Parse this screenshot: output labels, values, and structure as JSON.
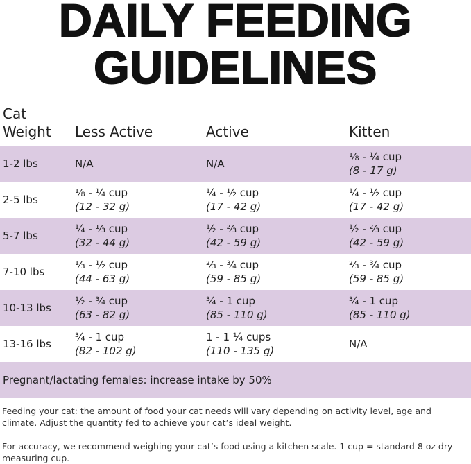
{
  "title": [
    "DAILY FEEDING",
    "GUIDELINES"
  ],
  "table": {
    "header": [
      [
        "Cat",
        "Weight"
      ],
      "Less Active",
      "Active",
      "Kitten"
    ],
    "rows": [
      [
        "1-2 lbs",
        "N/A",
        "N/A",
        {
          "cups": "⅛ - ¼ cup",
          "grams": "(8 - 17 g)"
        }
      ],
      [
        "2-5 lbs",
        {
          "cups": "⅛ - ¼ cup",
          "grams": "(12 - 32 g)"
        },
        {
          "cups": "¼ - ½ cup",
          "grams": "(17 - 42 g)"
        },
        {
          "cups": "¼ - ½ cup",
          "grams": "(17 - 42 g)"
        }
      ],
      [
        "5-7 lbs",
        {
          "cups": "¼ - ⅓ cup",
          "grams": "(32 - 44 g)"
        },
        {
          "cups": "½ - ⅔ cup",
          "grams": "(42 - 59 g)"
        },
        {
          "cups": "½ - ⅔ cup",
          "grams": "(42 - 59 g)"
        }
      ],
      [
        "7-10 lbs",
        {
          "cups": "⅓ - ½ cup",
          "grams": "(44 - 63 g)"
        },
        {
          "cups": "⅔ - ¾ cup",
          "grams": "(59 - 85 g)"
        },
        {
          "cups": "⅔ - ¾ cup",
          "grams": "(59 - 85 g)"
        }
      ],
      [
        "10-13 lbs",
        {
          "cups": "½ - ¾ cup",
          "grams": "(63 - 82 g)"
        },
        {
          "cups": "¾ - 1 cup",
          "grams": "(85 - 110 g)"
        },
        {
          "cups": "¾ - 1 cup",
          "grams": "(85 - 110 g)"
        }
      ],
      [
        "13-16 lbs",
        {
          "cups": "¾ - 1 cup",
          "grams": "(82 - 102 g)"
        },
        {
          "cups": "1 - 1 ¼ cups",
          "grams": "(110 - 135 g)"
        },
        "N/A"
      ]
    ],
    "note": "Pregnant/lactating females: increase intake by 50%"
  },
  "footnotes": [
    "Feeding your cat: the amount of food your cat needs will vary depending on activity level, age and climate. Adjust the quantity fed to achieve your cat’s ideal weight.",
    "For accuracy, we recommend weighing your cat’s food using a kitchen scale. 1 cup = standard 8 oz dry measuring cup."
  ]
}
